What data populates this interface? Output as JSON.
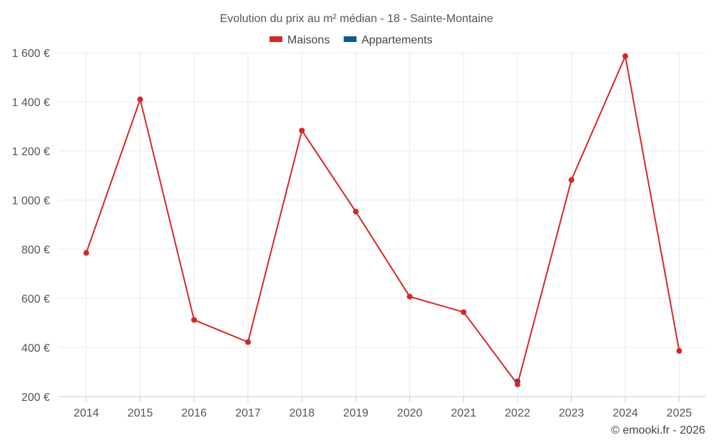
{
  "chart_data": {
    "type": "line",
    "title": "Evolution du prix au m² médian - 18 - Sainte-Montaine",
    "categories": [
      "2014",
      "2015",
      "2016",
      "2017",
      "2018",
      "2019",
      "2020",
      "2021",
      "2022",
      "2023",
      "2024",
      "2025"
    ],
    "series": [
      {
        "name": "Maisons",
        "color": "#d62728",
        "values": [
          785,
          1410,
          512,
          422,
          1283,
          953,
          607,
          544,
          250,
          1082,
          1586,
          386
        ]
      },
      {
        "name": "Appartements",
        "color": "#0b5c91",
        "values": [
          null,
          null,
          null,
          null,
          null,
          null,
          null,
          null,
          262,
          null,
          null,
          null
        ]
      }
    ],
    "ylim": [
      200,
      1600
    ],
    "yticks": [
      200,
      400,
      600,
      800,
      1000,
      1200,
      1400,
      1600
    ],
    "ytick_labels": [
      "200 €",
      "400 €",
      "600 €",
      "800 €",
      "1 000 €",
      "1 200 €",
      "1 400 €",
      "1 600 €"
    ],
    "grid": true,
    "legend_position": "top-center"
  },
  "credit": "© emooki.fr - 2026"
}
